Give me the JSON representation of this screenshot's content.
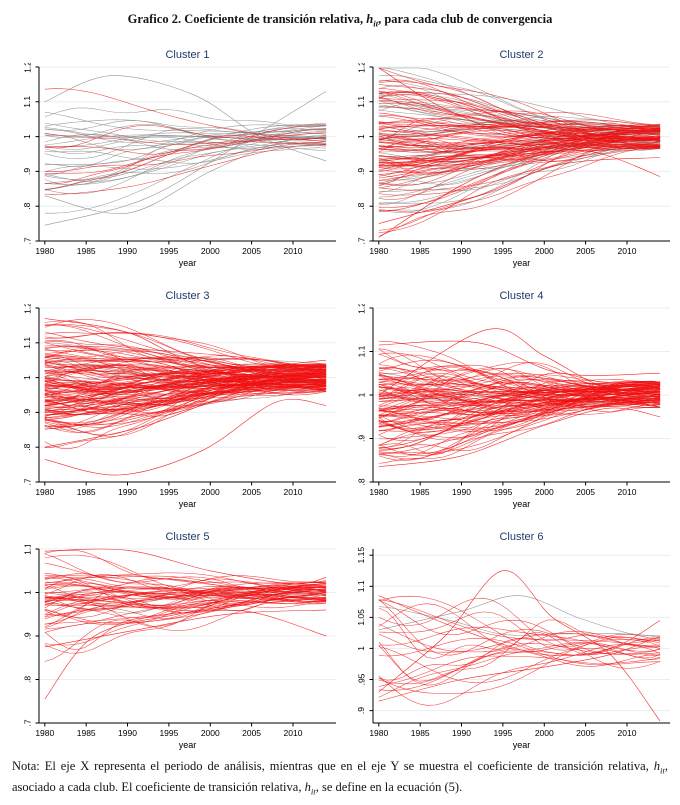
{
  "page": {
    "title": {
      "prefix": "Grafico 2. Coeficiente de transición relativa, ",
      "math": "h",
      "math_sub": "it",
      "suffix": ", para cada club de convergencia"
    },
    "note": {
      "part1": "Nota: El eje X representa el periodo de análisis, mientras que en el eje Y se muestra el coeficiente de transición relativa, ",
      "math1": "h",
      "sub1": "it",
      "part2": ", asociado a cada club. El coeficiente de transición relativa, ",
      "math2": "h",
      "sub2": "it",
      "part3": ", se define en la ecuación (5)."
    }
  },
  "colors": {
    "red_line": "#f01011",
    "gray_line": "#8a8a8a",
    "gridline": "#e9edf2",
    "axis": "#000000",
    "panel_title": "#1e3c6e",
    "tick_text": "#000000"
  },
  "chart_data": [
    {
      "type": "line",
      "title": "Cluster 1",
      "xlabel": "year",
      "x_range": [
        1980,
        2014
      ],
      "x_axis_range": [
        1979.3,
        2015.2
      ],
      "x_ticks": [
        1980,
        1985,
        1990,
        1995,
        2000,
        2005,
        2010
      ],
      "ylim": [
        0.7,
        1.2
      ],
      "y_tick_values": [
        0.7,
        0.8,
        0.9,
        1,
        1.1,
        1.2
      ],
      "y_tick_labels": [
        ".7",
        ".8",
        ".9",
        "1",
        "1.1",
        "1.2"
      ],
      "grid": true,
      "legend": "none",
      "red_series": 9,
      "gray_series": 30,
      "start_range": [
        0.745,
        1.175
      ],
      "end_sd": 0.04,
      "wiggle": 0.03,
      "seed": 101,
      "feature_lines": [
        {
          "color": "gray",
          "points": [
            [
              1980,
              0.745
            ],
            [
              1992,
              0.82
            ],
            [
              2003,
              0.97
            ],
            [
              2014,
              1.13
            ]
          ]
        },
        {
          "color": "gray",
          "points": [
            [
              1980,
              1.1
            ],
            [
              1988,
              1.175
            ],
            [
              1998,
              1.12
            ],
            [
              2006,
              1.0
            ],
            [
              2014,
              0.93
            ]
          ]
        },
        {
          "color": "gray",
          "points": [
            [
              1980,
              0.83
            ],
            [
              1990,
              0.78
            ],
            [
              2000,
              0.9
            ],
            [
              2008,
              0.98
            ],
            [
              2014,
              1.0
            ]
          ]
        }
      ]
    },
    {
      "type": "line",
      "title": "Cluster 2",
      "xlabel": "year",
      "x_range": [
        1980,
        2014
      ],
      "x_axis_range": [
        1979.3,
        2015.2
      ],
      "x_ticks": [
        1980,
        1985,
        1990,
        1995,
        2000,
        2005,
        2010
      ],
      "ylim": [
        0.7,
        1.2
      ],
      "y_tick_values": [
        0.7,
        0.8,
        0.9,
        1,
        1.1,
        1.2
      ],
      "y_tick_labels": [
        ".7",
        ".8",
        ".9",
        "1",
        "1.1",
        "1.2"
      ],
      "grid": true,
      "legend": "none",
      "red_series": 85,
      "gray_series": 45,
      "start_range": [
        0.71,
        1.205
      ],
      "end_sd": 0.035,
      "wiggle": 0.028,
      "seed": 202,
      "feature_lines": [
        {
          "color": "red",
          "points": [
            [
              1980,
              0.71
            ],
            [
              1990,
              0.86
            ],
            [
              2000,
              0.96
            ],
            [
              2008,
              1.0
            ],
            [
              2014,
              0.99
            ]
          ]
        },
        {
          "color": "red",
          "points": [
            [
              1980,
              1.205
            ],
            [
              1988,
              1.08
            ],
            [
              1998,
              1.0
            ],
            [
              2014,
              1.0
            ]
          ]
        },
        {
          "color": "red",
          "points": [
            [
              1980,
              1.02
            ],
            [
              2000,
              0.97
            ],
            [
              2007,
              0.95
            ],
            [
              2014,
              0.885
            ]
          ]
        },
        {
          "color": "red",
          "points": [
            [
              1980,
              0.75
            ],
            [
              1992,
              0.83
            ],
            [
              2002,
              0.92
            ],
            [
              2014,
              0.94
            ]
          ]
        }
      ]
    },
    {
      "type": "line",
      "title": "Cluster 3",
      "xlabel": "year",
      "x_range": [
        1980,
        2014
      ],
      "x_axis_range": [
        1979.3,
        2015.2
      ],
      "x_ticks": [
        1980,
        1985,
        1990,
        1995,
        2000,
        2005,
        2010
      ],
      "ylim": [
        0.7,
        1.2
      ],
      "y_tick_values": [
        0.7,
        0.8,
        0.9,
        1,
        1.1,
        1.2
      ],
      "y_tick_labels": [
        ".7",
        ".8",
        ".9",
        "1",
        "1.1",
        "1.2"
      ],
      "grid": true,
      "legend": "none",
      "red_series": 135,
      "gray_series": 12,
      "start_range": [
        0.765,
        1.17
      ],
      "end_sd": 0.04,
      "wiggle": 0.03,
      "seed": 303,
      "feature_lines": [
        {
          "color": "red",
          "points": [
            [
              1980,
              0.765
            ],
            [
              1989,
              0.72
            ],
            [
              1999,
              0.79
            ],
            [
              2008,
              0.93
            ],
            [
              2014,
              0.92
            ]
          ]
        },
        {
          "color": "red",
          "points": [
            [
              1980,
              1.17
            ],
            [
              1990,
              1.13
            ],
            [
              2000,
              1.03
            ],
            [
              2014,
              1.05
            ]
          ]
        },
        {
          "color": "red",
          "points": [
            [
              1980,
              0.8
            ],
            [
              1992,
              0.86
            ],
            [
              2004,
              0.96
            ],
            [
              2014,
              0.97
            ]
          ]
        }
      ]
    },
    {
      "type": "line",
      "title": "Cluster 4",
      "xlabel": "year",
      "x_range": [
        1980,
        2014
      ],
      "x_axis_range": [
        1979.3,
        2015.2
      ],
      "x_ticks": [
        1980,
        1985,
        1990,
        1995,
        2000,
        2005,
        2010
      ],
      "ylim": [
        0.8,
        1.2
      ],
      "y_tick_values": [
        0.8,
        0.9,
        1,
        1.1,
        1.2
      ],
      "y_tick_labels": [
        ".8",
        ".9",
        "1",
        "1.1",
        "1.2"
      ],
      "grid": true,
      "legend": "none",
      "red_series": 105,
      "gray_series": 3,
      "start_range": [
        0.835,
        1.115
      ],
      "end_sd": 0.03,
      "wiggle": 0.035,
      "seed": 404,
      "feature_lines": [
        {
          "color": "red",
          "points": [
            [
              1980,
              1.0
            ],
            [
              1993,
              1.15
            ],
            [
              2000,
              1.09
            ],
            [
              2007,
              1.02
            ],
            [
              2014,
              1.0
            ]
          ]
        },
        {
          "color": "red",
          "points": [
            [
              1980,
              0.835
            ],
            [
              1990,
              0.86
            ],
            [
              2000,
              0.93
            ],
            [
              2008,
              0.97
            ],
            [
              2014,
              0.95
            ]
          ]
        },
        {
          "color": "red",
          "points": [
            [
              1980,
              1.115
            ],
            [
              1992,
              1.12
            ],
            [
              2002,
              1.05
            ],
            [
              2014,
              1.05
            ]
          ]
        }
      ]
    },
    {
      "type": "line",
      "title": "Cluster 5",
      "xlabel": "year",
      "x_range": [
        1980,
        2014
      ],
      "x_axis_range": [
        1979.3,
        2015.2
      ],
      "x_ticks": [
        1980,
        1985,
        1990,
        1995,
        2000,
        2005,
        2010
      ],
      "ylim": [
        0.7,
        1.1
      ],
      "y_tick_values": [
        0.7,
        0.8,
        0.9,
        1,
        1.1
      ],
      "y_tick_labels": [
        ".7",
        ".8",
        ".9",
        "1",
        "1.1"
      ],
      "grid": true,
      "legend": "none",
      "red_series": 55,
      "gray_series": 2,
      "start_range": [
        0.865,
        1.095
      ],
      "end_sd": 0.028,
      "wiggle": 0.03,
      "seed": 505,
      "feature_lines": [
        {
          "color": "red",
          "points": [
            [
              1980,
              0.755
            ],
            [
              1986,
              0.9
            ],
            [
              1996,
              0.95
            ],
            [
              2006,
              0.98
            ],
            [
              2014,
              1.0
            ]
          ]
        },
        {
          "color": "red",
          "points": [
            [
              1980,
              1.0
            ],
            [
              1996,
              0.96
            ],
            [
              2005,
              0.955
            ],
            [
              2014,
              0.9
            ]
          ]
        },
        {
          "color": "red",
          "points": [
            [
              1980,
              1.095
            ],
            [
              1990,
              1.1
            ],
            [
              2000,
              1.05
            ],
            [
              2010,
              1.02
            ],
            [
              2014,
              1.035
            ]
          ]
        },
        {
          "color": "red",
          "points": [
            [
              1980,
              0.875
            ],
            [
              1990,
              0.91
            ],
            [
              2002,
              0.95
            ],
            [
              2014,
              0.96
            ]
          ]
        }
      ]
    },
    {
      "type": "line",
      "title": "Cluster 6",
      "xlabel": "year",
      "x_range": [
        1980,
        2014
      ],
      "x_axis_range": [
        1979.3,
        2015.2
      ],
      "x_ticks": [
        1980,
        1985,
        1990,
        1995,
        2000,
        2005,
        2010
      ],
      "ylim": [
        0.88,
        1.16
      ],
      "y_tick_values": [
        0.9,
        0.95,
        1,
        1.05,
        1.1,
        1.15
      ],
      "y_tick_labels": [
        ".9",
        ".95",
        "1",
        "1.05",
        "1.1",
        "1.15"
      ],
      "grid": true,
      "legend": "none",
      "red_series": 22,
      "gray_series": 1,
      "start_range": [
        0.915,
        1.085
      ],
      "end_sd": 0.022,
      "wiggle": 0.042,
      "seed": 606,
      "feature_lines": [
        {
          "color": "red",
          "points": [
            [
              1980,
              0.93
            ],
            [
              1988,
              1.02
            ],
            [
              1995,
              1.125
            ],
            [
              2001,
              1.05
            ],
            [
              2008,
              0.99
            ],
            [
              2014,
              0.88
            ]
          ]
        },
        {
          "color": "gray",
          "points": [
            [
              1980,
              1.03
            ],
            [
              1990,
              1.06
            ],
            [
              1997,
              1.085
            ],
            [
              2004,
              1.05
            ],
            [
              2010,
              1.025
            ],
            [
              2014,
              1.02
            ]
          ]
        },
        {
          "color": "red",
          "points": [
            [
              1980,
              0.915
            ],
            [
              1990,
              0.95
            ],
            [
              2000,
              0.97
            ],
            [
              2008,
              0.99
            ],
            [
              2014,
              1.02
            ]
          ]
        },
        {
          "color": "red",
          "points": [
            [
              1980,
              1.085
            ],
            [
              1990,
              1.03
            ],
            [
              2000,
              0.99
            ],
            [
              2008,
              1.0
            ],
            [
              2014,
              1.045
            ]
          ]
        }
      ]
    }
  ]
}
